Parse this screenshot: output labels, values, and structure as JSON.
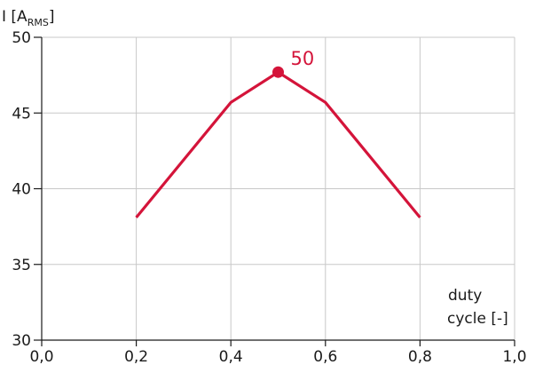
{
  "chart_data": {
    "type": "line",
    "ylabel": {
      "main": "I [A",
      "sub": "RMS",
      "close": "]"
    },
    "xlabel": {
      "line1": "duty",
      "line2": "cycle [-]"
    },
    "xlim": [
      0,
      1
    ],
    "ylim": [
      30,
      50
    ],
    "x_ticks": [
      {
        "value": 0.0,
        "label": "0,0"
      },
      {
        "value": 0.2,
        "label": "0,2"
      },
      {
        "value": 0.4,
        "label": "0,4"
      },
      {
        "value": 0.6,
        "label": "0,6"
      },
      {
        "value": 0.8,
        "label": "0,8"
      },
      {
        "value": 1.0,
        "label": "1,0"
      }
    ],
    "y_ticks": [
      {
        "value": 30,
        "label": "30"
      },
      {
        "value": 35,
        "label": "35"
      },
      {
        "value": 40,
        "label": "40"
      },
      {
        "value": 45,
        "label": "45"
      },
      {
        "value": 50,
        "label": "50"
      }
    ],
    "grid": true,
    "series": [
      {
        "color": "#d4143a",
        "points": [
          {
            "x": 0.2,
            "y": 38.1
          },
          {
            "x": 0.4,
            "y": 45.7
          },
          {
            "x": 0.5,
            "y": 47.7
          },
          {
            "x": 0.6,
            "y": 45.7
          },
          {
            "x": 0.8,
            "y": 38.1
          }
        ]
      }
    ],
    "annotation": {
      "text": "50",
      "x": 0.5,
      "y": 47.7,
      "color": "#d4143a"
    }
  }
}
